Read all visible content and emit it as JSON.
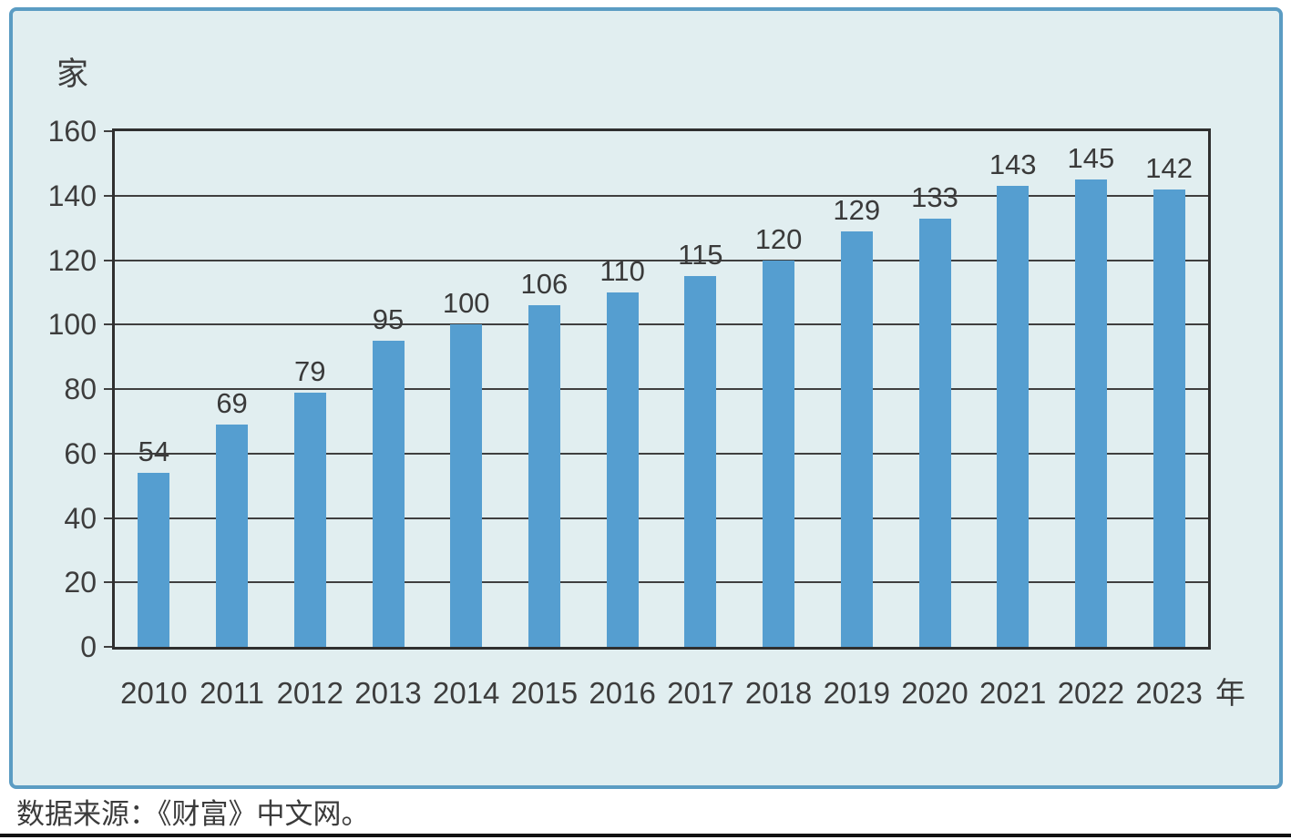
{
  "chart_data": {
    "type": "bar",
    "title": "",
    "ylabel_unit": "家",
    "xlabel_unit": "年",
    "categories": [
      "2010",
      "2011",
      "2012",
      "2013",
      "2014",
      "2015",
      "2016",
      "2017",
      "2018",
      "2019",
      "2020",
      "2021",
      "2022",
      "2023"
    ],
    "values": [
      54,
      69,
      79,
      95,
      100,
      106,
      110,
      115,
      120,
      129,
      133,
      143,
      145,
      142
    ],
    "y_ticks": [
      0,
      20,
      40,
      60,
      80,
      100,
      120,
      140,
      160
    ],
    "ylim": [
      0,
      160
    ],
    "grid": true,
    "legend_position": "none",
    "data_labels": true
  },
  "source_note": "数据来源：《财富》中文网。",
  "colors": {
    "panel_bg": "#e1eef0",
    "panel_border": "#5b9cc3",
    "bar": "#559ed0",
    "grid": "#3f3f3f",
    "plot_border": "#2f2f2f",
    "text": "#3d3d3d",
    "bottom_rule": "#111111"
  }
}
